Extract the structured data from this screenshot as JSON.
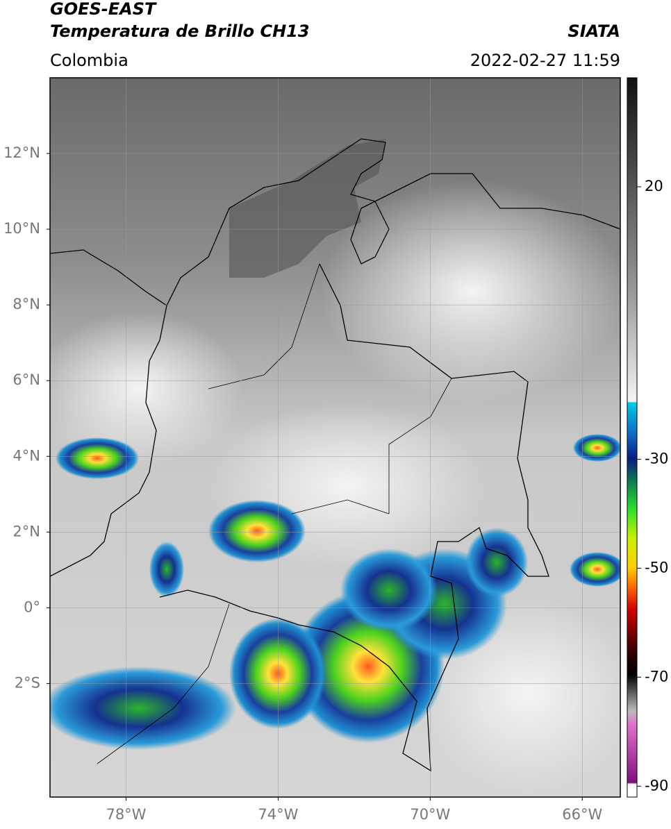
{
  "header": {
    "satellite": "GOES-EAST",
    "product": "Temperatura de Brillo CH13",
    "source": "SIATA",
    "region": "Colombia",
    "datetime": "2022-02-27 11:59"
  },
  "map": {
    "lon_range": [
      -80,
      -65
    ],
    "lat_range": [
      -5,
      14
    ],
    "lat_ticks": [
      {
        "value": 12,
        "label": "12°N"
      },
      {
        "value": 10,
        "label": "10°N"
      },
      {
        "value": 8,
        "label": "8°N"
      },
      {
        "value": 6,
        "label": "6°N"
      },
      {
        "value": 4,
        "label": "4°N"
      },
      {
        "value": 2,
        "label": "2°N"
      },
      {
        "value": 0,
        "label": "0°"
      },
      {
        "value": -2,
        "label": "2°S"
      }
    ],
    "lon_ticks": [
      {
        "value": -78,
        "label": "78°W"
      },
      {
        "value": -74,
        "label": "74°W"
      },
      {
        "value": -70,
        "label": "70°W"
      },
      {
        "value": -66,
        "label": "66°W"
      }
    ],
    "grid": true
  },
  "colorbar": {
    "range": [
      -92,
      40
    ],
    "ticks": [
      20,
      -30,
      -50,
      -70,
      -90
    ]
  }
}
